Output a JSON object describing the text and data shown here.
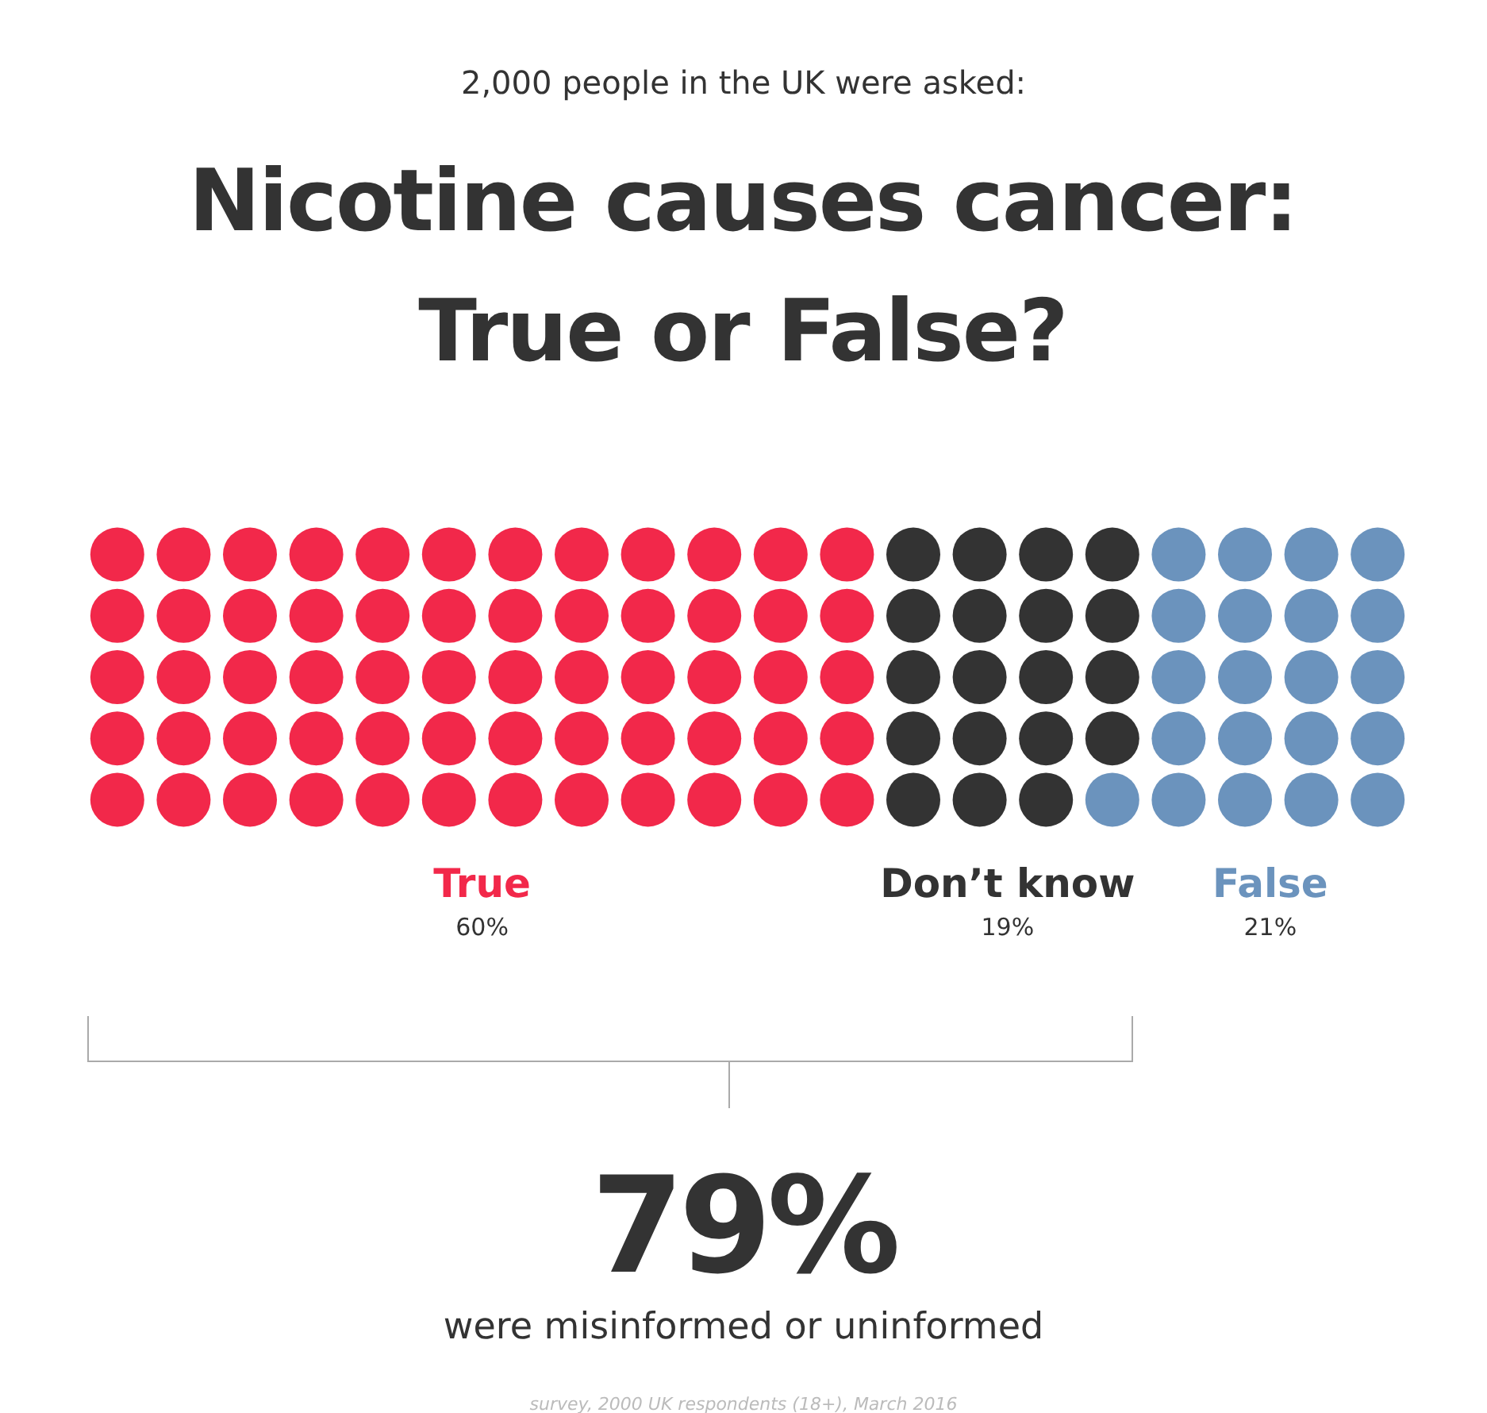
{
  "chart_data": {
    "type": "other",
    "subtitle": "2,000 people in the UK were asked:",
    "title": "Nicotine causes cancer: True or False?",
    "categories": [
      "True",
      "Don’t know",
      "False"
    ],
    "values": [
      60,
      19,
      21
    ],
    "colors": [
      "#f2284a",
      "#333333",
      "#6b93bd"
    ],
    "value_labels": [
      "60%",
      "19%",
      "21%"
    ],
    "annotations": [
      "79%",
      "were misinformed or uninformed",
      "survey, 2000 UK respondents (18+), March 2016"
    ]
  }
}
